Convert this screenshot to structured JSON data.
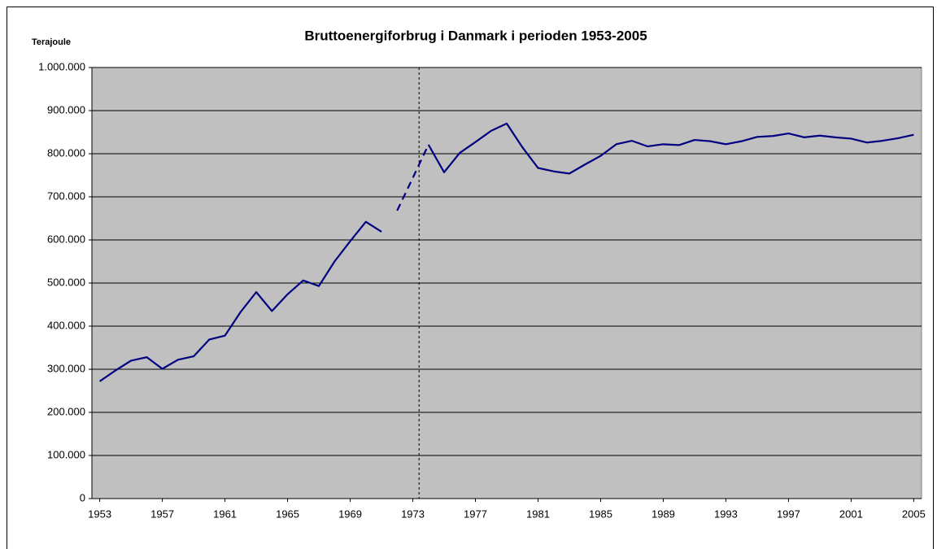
{
  "chart_data": {
    "type": "line",
    "title": "Bruttoenergiforbrug i Danmark i perioden 1953-2005",
    "y_label": "Terajoule",
    "x": [
      1953,
      1954,
      1955,
      1956,
      1957,
      1958,
      1959,
      1960,
      1961,
      1962,
      1963,
      1964,
      1965,
      1966,
      1967,
      1968,
      1969,
      1970,
      1971,
      1972,
      1973,
      1974,
      1975,
      1976,
      1977,
      1978,
      1979,
      1980,
      1981,
      1982,
      1983,
      1984,
      1985,
      1986,
      1987,
      1988,
      1989,
      1990,
      1991,
      1992,
      1993,
      1994,
      1995,
      1996,
      1997,
      1998,
      1999,
      2000,
      2001,
      2002,
      2003,
      2004,
      2005
    ],
    "series": [
      {
        "color": "#000080",
        "dashed": false,
        "values": [
          272000,
          297000,
          320000,
          328000,
          301000,
          322000,
          330000,
          369000,
          378000,
          433000,
          479000,
          435000,
          474000,
          506000,
          493000,
          550000,
          597000,
          642000,
          619000,
          null,
          null,
          821000,
          757000,
          802000,
          827000,
          853000,
          870000,
          815000,
          767000,
          759000,
          754000,
          775000,
          795000,
          822000,
          830000,
          817000,
          822000,
          820000,
          832000,
          829000,
          822000,
          829000,
          839000,
          841000,
          847000,
          838000,
          842000,
          838000,
          835000,
          826000,
          830000,
          836000,
          844000
        ]
      },
      {
        "color": "#000080",
        "dashed": true,
        "values": [
          null,
          null,
          null,
          null,
          null,
          null,
          null,
          null,
          null,
          null,
          null,
          null,
          null,
          null,
          null,
          null,
          null,
          null,
          null,
          668000,
          744000,
          821000,
          null,
          null,
          null,
          null,
          null,
          null,
          null,
          null,
          null,
          null,
          null,
          null,
          null,
          null,
          null,
          null,
          null,
          null,
          null,
          null,
          null,
          null,
          null,
          null,
          null,
          null,
          null,
          null,
          null,
          null,
          null
        ]
      }
    ],
    "vline_x": 1973.4,
    "xlim": [
      1952.5,
      2005.5
    ],
    "xticks": [
      1953,
      1957,
      1961,
      1965,
      1969,
      1973,
      1977,
      1981,
      1985,
      1989,
      1993,
      1997,
      2001,
      2005
    ],
    "ylim": [
      0,
      1000000
    ],
    "yticks": [
      0,
      {
        "value": 100000,
        "label": "100.000"
      },
      {
        "value": 200000,
        "label": "200.000"
      },
      {
        "value": 300000,
        "label": "300.000"
      },
      {
        "value": 400000,
        "label": "400.000"
      },
      {
        "value": 500000,
        "label": "500.000"
      },
      {
        "value": 600000,
        "label": "600.000"
      },
      {
        "value": 700000,
        "label": "700.000"
      },
      {
        "value": 800000,
        "label": "800.000"
      },
      {
        "value": 900000,
        "label": "900.000"
      },
      {
        "value": 1000000,
        "label": "1.000.000"
      }
    ],
    "grid": true,
    "plot_background": "#c0c0c0"
  }
}
